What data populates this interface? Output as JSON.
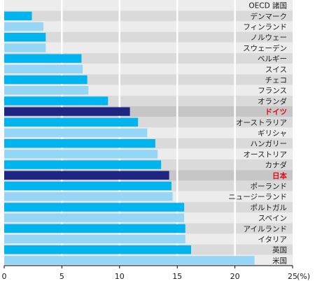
{
  "chart_data": {
    "type": "bar",
    "orientation": "horizontal",
    "categories": [
      "OECD 諸国",
      "デンマーク",
      "フィンランド",
      "ノルウェー",
      "スウェーデン",
      "ベルギー",
      "スイス",
      "チェコ",
      "フランス",
      "オランダ",
      "ドイツ",
      "オーストラリア",
      "ギリシャ",
      "ハンガリー",
      "オーストリア",
      "カナダ",
      "日本",
      "ポーランド",
      "ニュージーランド",
      "ポルトガル",
      "スペイン",
      "アイルランド",
      "イタリア",
      "英国",
      "米国"
    ],
    "values": [
      null,
      2.4,
      3.4,
      3.6,
      3.6,
      6.7,
      6.8,
      7.2,
      7.3,
      9.0,
      10.9,
      11.6,
      12.4,
      13.1,
      13.3,
      13.6,
      14.3,
      14.5,
      14.6,
      15.6,
      15.6,
      15.7,
      15.7,
      16.2,
      21.7
    ],
    "highlight": [
      "ドイツ",
      "日本"
    ],
    "xlim": [
      0,
      25
    ],
    "xticks": [
      0,
      5,
      10,
      15,
      20,
      25
    ],
    "xlabel": "(%)",
    "grid": true,
    "colors": {
      "bar_a": "#00b4ef",
      "bar_b": "#95d5f5",
      "bar_highlight": "#1f2583",
      "row_a": "#ececec",
      "row_b": "#dadada",
      "row_highlight": "#c6c6c6",
      "gridline": "#ffffff",
      "label": "#1a1a1a",
      "label_highlight": "#e30613"
    }
  }
}
